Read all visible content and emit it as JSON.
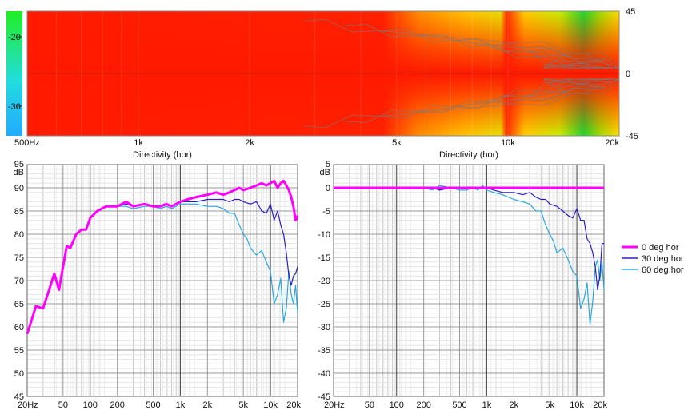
{
  "chart_data": [
    {
      "type": "heatmap",
      "name": "directivity-map",
      "colorbar_ticks": [
        "-20",
        "-30"
      ],
      "x_ticks": [
        "500Hz",
        "1k",
        "2k",
        "5k",
        "10k",
        "20k"
      ],
      "x_tick_values": [
        500,
        1000,
        2000,
        5000,
        10000,
        20000
      ],
      "y_ticks": [
        "45",
        "0",
        "-45"
      ],
      "y_tick_values": [
        45,
        0,
        -45
      ],
      "xlim": [
        500,
        20000
      ],
      "ylim": [
        -45,
        45
      ],
      "x_scale": "log",
      "colors": {
        "high": "#ff1a00",
        "mid": "#ffcc00",
        "low": "#22dd22",
        "lowest": "#22c8ff"
      }
    },
    {
      "type": "line",
      "name": "spl-plot",
      "title": "Directivity (hor)",
      "ylabel": "dB",
      "x_scale": "log",
      "xlim": [
        20,
        20000
      ],
      "ylim": [
        45,
        95
      ],
      "x_ticks": [
        "20Hz",
        "50",
        "100",
        "200",
        "500",
        "1k",
        "2k",
        "5k",
        "10k",
        "20k"
      ],
      "x_tick_values": [
        20,
        50,
        100,
        200,
        500,
        1000,
        2000,
        5000,
        10000,
        20000
      ],
      "y_ticks": [
        "95",
        "90",
        "85",
        "80",
        "75",
        "70",
        "65",
        "60",
        "55",
        "50",
        "45"
      ],
      "y_tick_values": [
        95,
        90,
        85,
        80,
        75,
        70,
        65,
        60,
        55,
        50,
        45
      ],
      "series": [
        {
          "name": "60 deg hor",
          "color": "#29a8e0",
          "x": [
            20,
            22,
            25,
            30,
            35,
            40,
            45,
            50,
            55,
            60,
            70,
            80,
            90,
            100,
            120,
            150,
            200,
            250,
            300,
            400,
            500,
            600,
            700,
            800,
            1000,
            1200,
            1500,
            2000,
            2500,
            3000,
            3500,
            4000,
            4500,
            5000,
            5500,
            6000,
            7000,
            8000,
            9000,
            10000,
            11000,
            12000,
            13000,
            14000,
            15000,
            16000,
            17000,
            18000,
            19000,
            20000
          ],
          "y": [
            58.5,
            61,
            64.5,
            64,
            68,
            71.5,
            68,
            73,
            77.5,
            77,
            80,
            81,
            81,
            83.5,
            85,
            86,
            86,
            86,
            85.5,
            86,
            86,
            85.5,
            86,
            85.5,
            86.5,
            86.5,
            86.5,
            86,
            86,
            85.5,
            84.5,
            84.5,
            82,
            80,
            79,
            77,
            75.5,
            76.5,
            74,
            72,
            65,
            67,
            70.5,
            61,
            64,
            72,
            67,
            65,
            69,
            63
          ]
        },
        {
          "name": "30 deg hor",
          "color": "#2b1fc2",
          "x": [
            20,
            22,
            25,
            30,
            35,
            40,
            45,
            50,
            55,
            60,
            70,
            80,
            90,
            100,
            120,
            150,
            200,
            250,
            300,
            400,
            500,
            600,
            700,
            800,
            1000,
            1200,
            1500,
            2000,
            2500,
            3000,
            3500,
            4000,
            4500,
            5000,
            6000,
            7000,
            8000,
            9000,
            10000,
            11000,
            12000,
            13000,
            14000,
            15000,
            16000,
            17000,
            18000,
            19000,
            20000
          ],
          "y": [
            58.5,
            61,
            64.5,
            64,
            68,
            71.5,
            68,
            73,
            77.5,
            77,
            80,
            81,
            81,
            83.5,
            85,
            86,
            86,
            86.5,
            86,
            86.5,
            86,
            86,
            86.5,
            86,
            87,
            87,
            87,
            87.5,
            87.5,
            87.5,
            87,
            87.5,
            87.5,
            87,
            86.5,
            87,
            85,
            84.5,
            86.5,
            83,
            85,
            82,
            80,
            76,
            71,
            69,
            71,
            71.5,
            73
          ]
        },
        {
          "name": "0 deg hor",
          "color": "#ff00ff",
          "x": [
            20,
            22,
            25,
            30,
            35,
            40,
            45,
            50,
            55,
            60,
            70,
            80,
            90,
            100,
            120,
            150,
            200,
            250,
            300,
            400,
            500,
            600,
            700,
            800,
            1000,
            1200,
            1500,
            2000,
            2500,
            3000,
            3500,
            4000,
            4500,
            5000,
            6000,
            7000,
            8000,
            9000,
            10000,
            11000,
            12000,
            13000,
            14000,
            15000,
            16000,
            17000,
            18000,
            19000,
            20000
          ],
          "y": [
            58.5,
            61,
            64.5,
            64,
            68,
            71.5,
            68,
            73,
            77.5,
            77,
            80,
            81,
            81,
            83.5,
            85,
            86,
            86,
            87,
            86,
            86.5,
            86,
            86,
            86.5,
            86,
            87,
            87.5,
            88,
            88.5,
            89,
            88.5,
            89,
            89.5,
            90,
            89.5,
            90,
            90.5,
            91,
            90.5,
            91,
            91.5,
            90,
            91,
            91.5,
            90.5,
            89.5,
            88,
            86,
            83,
            84
          ]
        }
      ]
    },
    {
      "type": "line",
      "name": "normalized-plot",
      "title": "Directivity (hor)",
      "ylabel": "dB",
      "x_scale": "log",
      "xlim": [
        20,
        20000
      ],
      "ylim": [
        -45,
        5
      ],
      "x_ticks": [
        "20Hz",
        "50",
        "100",
        "200",
        "500",
        "1k",
        "2k",
        "5k",
        "10k",
        "20k"
      ],
      "x_tick_values": [
        20,
        50,
        100,
        200,
        500,
        1000,
        2000,
        5000,
        10000,
        20000
      ],
      "y_ticks": [
        "5",
        "0",
        "-5",
        "-10",
        "-15",
        "-20",
        "-25",
        "-30",
        "-35",
        "-40",
        "-45"
      ],
      "y_tick_values": [
        5,
        0,
        -5,
        -10,
        -15,
        -20,
        -25,
        -30,
        -35,
        -40,
        -45
      ],
      "legend_position": "right",
      "series": [
        {
          "name": "60 deg hor",
          "color": "#29a8e0",
          "x": [
            20,
            100,
            200,
            250,
            300,
            400,
            500,
            600,
            700,
            800,
            900,
            1000,
            1200,
            1500,
            2000,
            2500,
            3000,
            3500,
            4000,
            4500,
            5000,
            5500,
            6000,
            7000,
            8000,
            9000,
            10000,
            11000,
            12000,
            13000,
            14000,
            15000,
            16000,
            17000,
            18000,
            19000,
            20000
          ],
          "y": [
            0,
            0,
            0,
            -0.5,
            0.5,
            0,
            -0.5,
            -0.5,
            0,
            -0.5,
            0.5,
            -0.5,
            -1,
            -1.5,
            -2.5,
            -3,
            -3.5,
            -5,
            -5,
            -8,
            -10,
            -11.5,
            -14,
            -13,
            -15.5,
            -18,
            -19,
            -26,
            -24,
            -20.5,
            -29.5,
            -24.5,
            -17,
            -15.5,
            -20,
            -16,
            -22
          ]
        },
        {
          "name": "30 deg hor",
          "color": "#2b1fc2",
          "x": [
            20,
            100,
            200,
            250,
            300,
            400,
            500,
            600,
            700,
            800,
            1000,
            1200,
            1500,
            2000,
            2500,
            3000,
            3500,
            4000,
            4500,
            5000,
            6000,
            7000,
            8000,
            9000,
            10000,
            11000,
            12000,
            13000,
            14000,
            15000,
            16000,
            17000,
            18000,
            19000,
            20000
          ],
          "y": [
            0,
            0,
            0,
            0,
            -0.5,
            0,
            0,
            0,
            0,
            0,
            0,
            -0.5,
            -1,
            -1,
            -1.5,
            -1,
            -2,
            -2.5,
            -2.5,
            -3.5,
            -4,
            -5,
            -6,
            -6.5,
            -4.5,
            -7,
            -7,
            -11,
            -12,
            -14,
            -17,
            -22,
            -19,
            -12,
            -12
          ]
        },
        {
          "name": "0 deg hor",
          "color": "#ff00ff",
          "x": [
            20,
            20000
          ],
          "y": [
            0,
            0
          ]
        }
      ]
    }
  ]
}
